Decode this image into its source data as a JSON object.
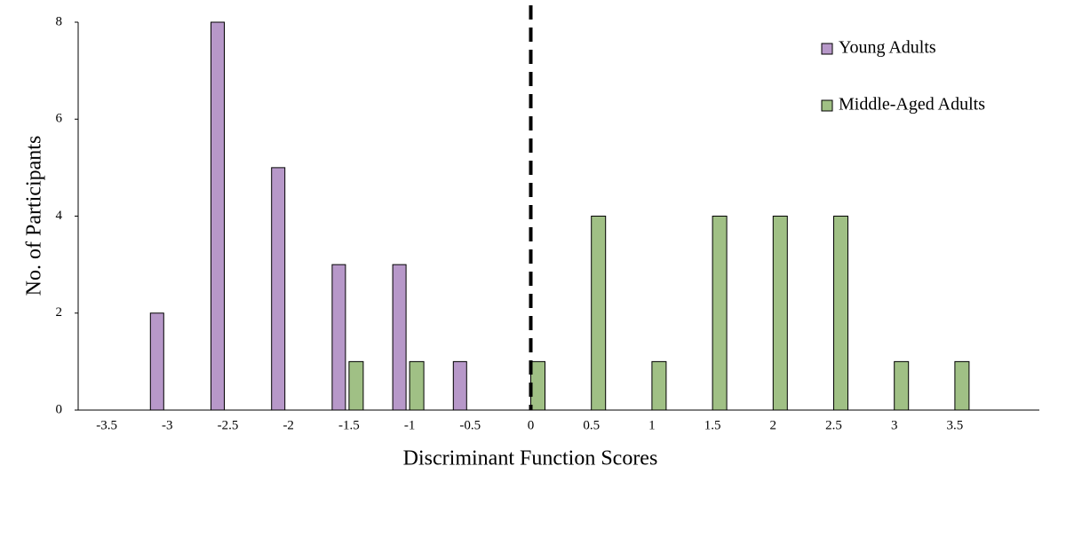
{
  "chart_data": {
    "type": "bar",
    "x_label": "Discriminant Function Scores",
    "y_label": "No. of Participants",
    "categories": [
      "-3.5",
      "-3",
      "-2.5",
      "-2",
      "-1.5",
      "-1",
      "-0.5",
      "0",
      "0.5",
      "1",
      "1.5",
      "2",
      "2.5",
      "3",
      "3.5"
    ],
    "series": [
      {
        "name": "Young Adults",
        "color": "#b798c9",
        "values": [
          0,
          2,
          8,
          5,
          3,
          3,
          1,
          0,
          0,
          0,
          0,
          0,
          0,
          0,
          0
        ]
      },
      {
        "name": "Middle-Aged Adults",
        "color": "#a0c085",
        "values": [
          0,
          0,
          0,
          0,
          1,
          1,
          0,
          1,
          4,
          1,
          4,
          4,
          4,
          1,
          1
        ]
      }
    ],
    "ylim": [
      0,
      8
    ],
    "yticks": [
      0,
      2,
      4,
      6,
      8
    ],
    "grid": false,
    "reference_line": "0",
    "legend": "upper right"
  }
}
